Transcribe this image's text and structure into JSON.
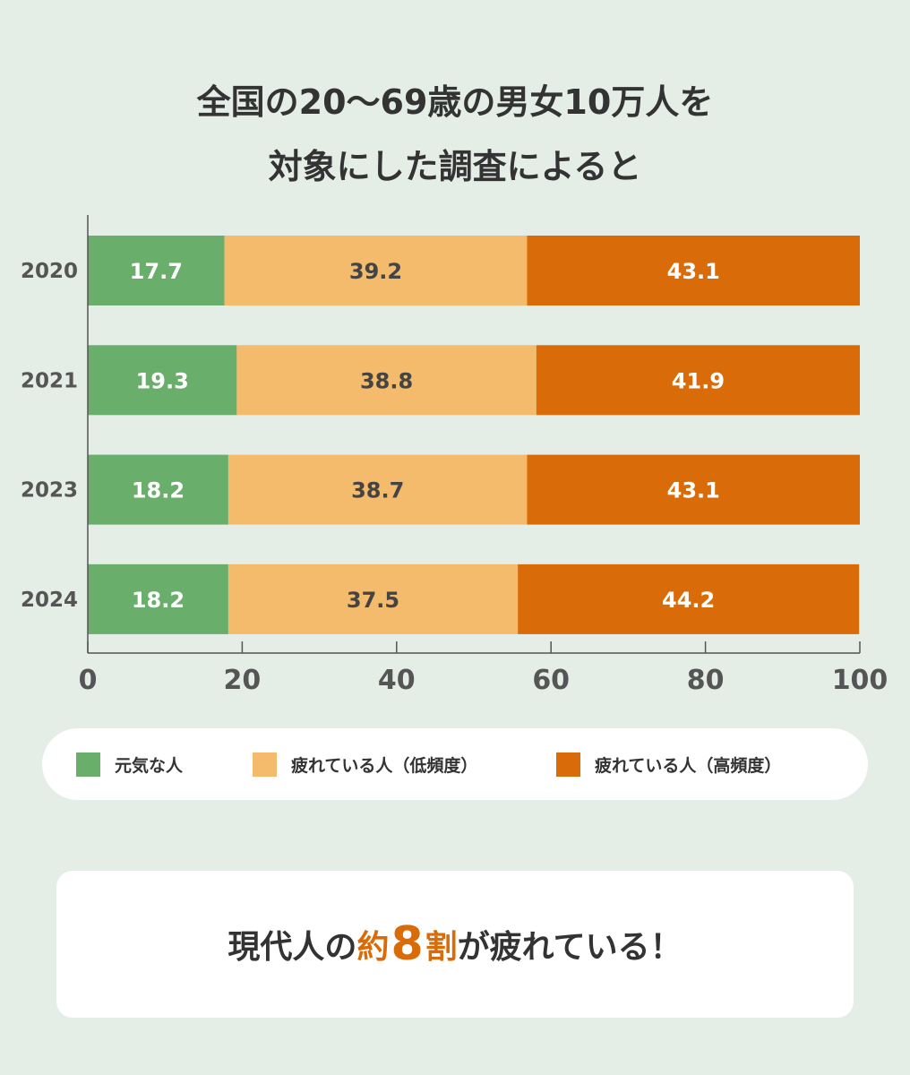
{
  "title": {
    "line1": "全国の20〜69歳の男女10万人を",
    "line2": "対象にした調査によると"
  },
  "chart_data": {
    "type": "bar",
    "orientation": "horizontal",
    "stacked": true,
    "categories": [
      "2020",
      "2021",
      "2023",
      "2024"
    ],
    "series": [
      {
        "name": "元気な人",
        "color": "#6aae6c",
        "label_color": "#ffffff",
        "values": [
          17.7,
          19.3,
          18.2,
          18.2
        ]
      },
      {
        "name": "疲れている人（低頻度）",
        "color": "#f3bb6b",
        "label_color": "#444444",
        "values": [
          39.2,
          38.8,
          38.7,
          37.5
        ]
      },
      {
        "name": "疲れている人（高頻度）",
        "color": "#d96c08",
        "label_color": "#ffffff",
        "values": [
          43.1,
          41.9,
          43.1,
          44.2
        ]
      }
    ],
    "xlim": [
      0,
      100
    ],
    "xticks": [
      "0",
      "20",
      "40",
      "60",
      "80",
      "100"
    ],
    "xlabel": "",
    "ylabel": "",
    "grid": false,
    "legend_position": "bottom"
  },
  "callout": {
    "prefix": "現代人の",
    "hl1": "約",
    "hl2": "8",
    "hl3": "割",
    "suffix": "が疲れている！"
  }
}
